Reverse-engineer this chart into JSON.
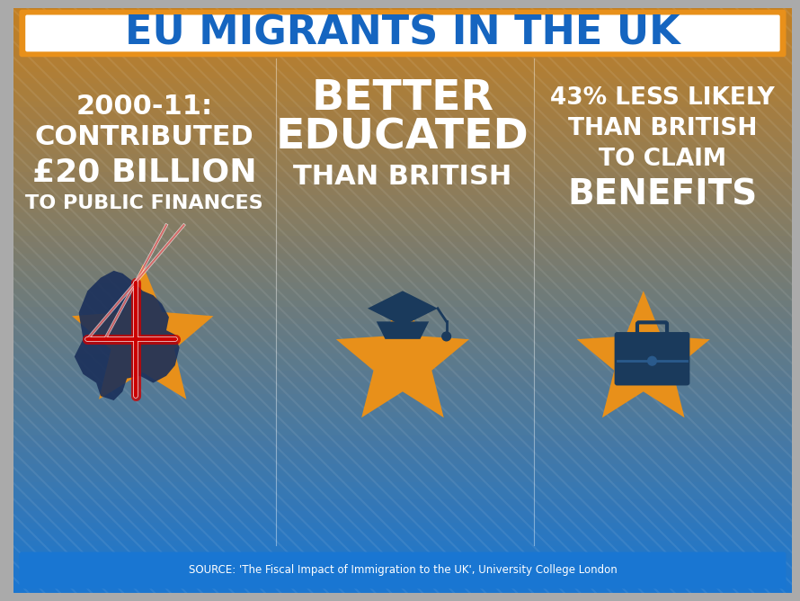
{
  "title": "EU MIGRANTS IN THE UK",
  "title_color": "#1565C0",
  "title_bg": "white",
  "title_border": "#E8901A",
  "bg_color_top": "#C17F24",
  "bg_color_bottom": "#1976D2",
  "source_text": "SOURCE: 'The Fiscal Impact of Immigration to the UK', University College London",
  "source_bg": "#1976D2",
  "col1_line1": "2000-11:",
  "col1_line2": "CONTRIBUTED",
  "col1_line3": "£20 BILLION",
  "col1_line4": "TO PUBLIC FINANCES",
  "col2_line1": "BETTER",
  "col2_line2": "EDUCATED",
  "col2_line3": "THAN BRITISH",
  "col3_line1": "43% LESS LIKELY",
  "col3_line2": "THAN BRITISH",
  "col3_line3": "TO CLAIM",
  "col3_line4": "BENEFITS",
  "text_color": "white",
  "highlight_color": "white",
  "orange": "#E8901A",
  "dark_blue": "#1A3A5C",
  "stripe_color": "#CCCCCC"
}
